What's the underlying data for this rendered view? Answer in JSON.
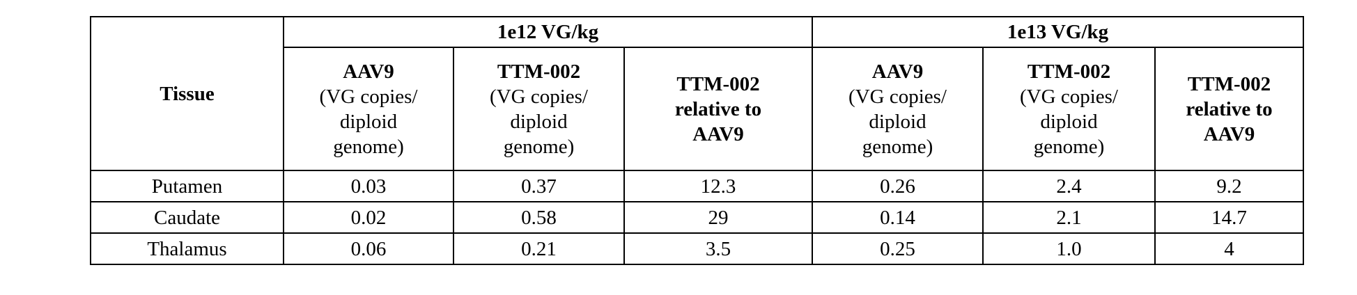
{
  "table": {
    "row_header": "Tissue",
    "groups": [
      "1e12 VG/kg",
      "1e13 VG/kg"
    ],
    "columns": [
      {
        "title": [
          "AAV9"
        ],
        "unit": [
          "(VG copies/",
          "diploid",
          "genome)"
        ]
      },
      {
        "title": [
          "TTM-002"
        ],
        "unit": [
          "(VG copies/",
          "diploid",
          "genome)"
        ]
      },
      {
        "title": [
          "TTM-002",
          "relative to",
          "AAV9"
        ]
      },
      {
        "title": [
          "AAV9"
        ],
        "unit": [
          "(VG copies/",
          "diploid",
          "genome)"
        ]
      },
      {
        "title": [
          "TTM-002"
        ],
        "unit": [
          "(VG copies/",
          "diploid",
          "genome)"
        ]
      },
      {
        "title": [
          "TTM-002",
          "relative to",
          "AAV9"
        ]
      }
    ],
    "rows": [
      [
        "Putamen",
        "0.03",
        "0.37",
        "12.3",
        "0.26",
        "2.4",
        "9.2"
      ],
      [
        "Caudate",
        "0.02",
        "0.58",
        "29",
        "0.14",
        "2.1",
        "14.7"
      ],
      [
        "Thalamus",
        "0.06",
        "0.21",
        "3.5",
        "0.25",
        "1.0",
        "4"
      ]
    ]
  }
}
